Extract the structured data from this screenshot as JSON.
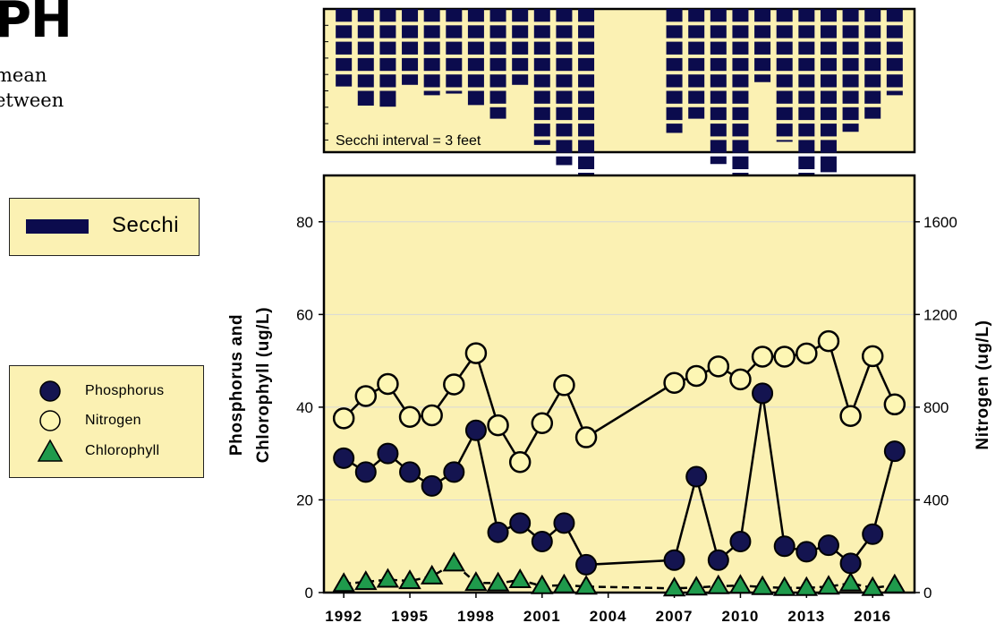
{
  "page": {
    "heading": "PH",
    "blurb_line1": "mean",
    "blurb_line2": "etween"
  },
  "legends": {
    "secchi_label": "Secchi",
    "phosphorus_label": "Phosphorus",
    "nitrogen_label": "Nitrogen",
    "chlorophyll_label": "Chlorophyll"
  },
  "colors": {
    "panel_bg": "#fbf1b3",
    "secchi": "#0b0b4d",
    "phosphorus": "#141450",
    "nitrogen": "#fdf6b4",
    "chlorophyll": "#1f9a4c",
    "gridline": "#d8d8d8"
  },
  "chart_data": [
    {
      "type": "bar",
      "title": "Secchi",
      "annotation": "Secchi interval = 3 feet",
      "interval_feet": 3,
      "note": "bars hang from the top of the panel; depth shown as stacked 3-foot blocks",
      "x": [
        1992,
        1993,
        1994,
        1995,
        1996,
        1997,
        1998,
        1999,
        2000,
        2001,
        2002,
        2003,
        2004,
        2005,
        2006,
        2007,
        2008,
        2009,
        2010,
        2011,
        2012,
        2013,
        2014,
        2015,
        2016,
        2017
      ],
      "values": [
        14.2,
        17.7,
        17.9,
        13.9,
        15.8,
        15.5,
        17.6,
        20.1,
        13.9,
        24.9,
        28.6,
        34.5,
        null,
        null,
        null,
        22.7,
        20.1,
        28.4,
        34.5,
        13.4,
        24.3,
        34.5,
        29.9,
        22.5,
        20.1,
        15.8
      ]
    },
    {
      "type": "line",
      "title": "",
      "xlabel": "",
      "ylabel": "Phosphorus and Chlorophyll (ug/L)",
      "y2label": "Nitrogen (ug/L)",
      "xlim": [
        1991.1,
        2017.9
      ],
      "ylim": [
        0,
        90
      ],
      "y2lim": [
        0,
        1800
      ],
      "xticks": [
        1992,
        1995,
        1998,
        2001,
        2004,
        2007,
        2010,
        2013,
        2016
      ],
      "yticks": [
        0,
        20,
        40,
        60,
        80
      ],
      "y2ticks": [
        0,
        400,
        800,
        1200,
        1600
      ],
      "grid": true,
      "series": [
        {
          "name": "Phosphorus",
          "axis": "left",
          "marker": "circle",
          "x": [
            1992,
            1993,
            1994,
            1995,
            1996,
            1997,
            1998,
            1999,
            2000,
            2001,
            2002,
            2003,
            2007,
            2008,
            2009,
            2010,
            2011,
            2012,
            2013,
            2014,
            2015,
            2016,
            2017
          ],
          "y": [
            29,
            26,
            30,
            26,
            23,
            26,
            35,
            13,
            15,
            11,
            15,
            6,
            7,
            25,
            7,
            11,
            43,
            10,
            8.8,
            10.2,
            6.3,
            12.6,
            30.5
          ]
        },
        {
          "name": "Nitrogen",
          "axis": "right",
          "marker": "circle",
          "x": [
            1992,
            1993,
            1994,
            1995,
            1996,
            1997,
            1998,
            1999,
            2000,
            2001,
            2002,
            2003,
            2007,
            2008,
            2009,
            2010,
            2011,
            2012,
            2013,
            2014,
            2015,
            2016,
            2017
          ],
          "y": [
            752,
            848,
            900,
            758,
            765,
            898,
            1033,
            722,
            563,
            731,
            895,
            670,
            905,
            935,
            976,
            920,
            1018,
            1018,
            1032,
            1085,
            762,
            1020,
            812
          ]
        },
        {
          "name": "Chlorophyll",
          "axis": "left",
          "marker": "triangle",
          "x": [
            1992,
            1993,
            1994,
            1995,
            1996,
            1997,
            1998,
            1999,
            2000,
            2001,
            2002,
            2003,
            2007,
            2008,
            2009,
            2010,
            2011,
            2012,
            2013,
            2014,
            2015,
            2016,
            2017
          ],
          "y": [
            1.9,
            2.3,
            2.8,
            2.5,
            3.5,
            6.3,
            2.1,
            2.0,
            2.7,
            1.4,
            1.6,
            1.3,
            0.9,
            1.1,
            1.4,
            1.5,
            1.2,
            1.0,
            1.0,
            1.3,
            2.0,
            1.0,
            1.6
          ]
        }
      ]
    }
  ]
}
